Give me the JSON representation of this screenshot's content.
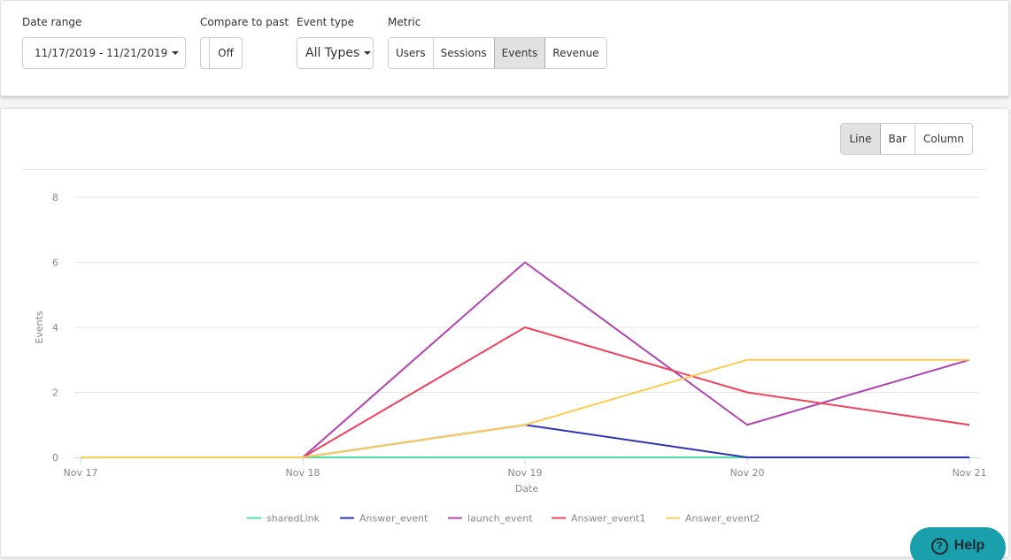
{
  "filters": {
    "date_range": {
      "label": "Date range",
      "value": "11/17/2019 - 11/21/2019",
      "icon": "calendar-icon"
    },
    "compare": {
      "label": "Compare to past",
      "value": "Off"
    },
    "event_type": {
      "label": "Event type",
      "value": "All Types"
    },
    "metric": {
      "label": "Metric",
      "options": [
        "Users",
        "Sessions",
        "Events",
        "Revenue"
      ],
      "selected": "Events"
    }
  },
  "chart_type": {
    "options": [
      "Line",
      "Bar",
      "Column"
    ],
    "selected": "Line"
  },
  "help": {
    "label": "Help",
    "icon": "question-circle-icon"
  },
  "chart_data": {
    "type": "line",
    "title": "",
    "xlabel": "Date",
    "ylabel": "Events",
    "categories": [
      "Nov 17",
      "Nov 18",
      "Nov 19",
      "Nov 20",
      "Nov 21"
    ],
    "y_ticks": [
      0,
      2,
      4,
      6,
      8
    ],
    "ylim": [
      0,
      8
    ],
    "grid": true,
    "legend_position": "bottom",
    "series": [
      {
        "name": "sharedLink",
        "color": "#4fe0a6",
        "values": [
          0,
          0,
          0,
          0,
          0
        ]
      },
      {
        "name": "Answer_event",
        "color": "#2b34b8",
        "values": [
          0,
          0,
          1,
          0,
          0
        ]
      },
      {
        "name": "launch_event",
        "color": "#b044b0",
        "values": [
          0,
          0,
          6,
          1,
          3
        ]
      },
      {
        "name": "Answer_event1",
        "color": "#f0435f",
        "values": [
          0,
          0,
          4,
          2,
          1
        ]
      },
      {
        "name": "Answer_event2",
        "color": "#fccc55",
        "values": [
          0,
          0,
          1,
          3,
          3
        ]
      }
    ]
  }
}
